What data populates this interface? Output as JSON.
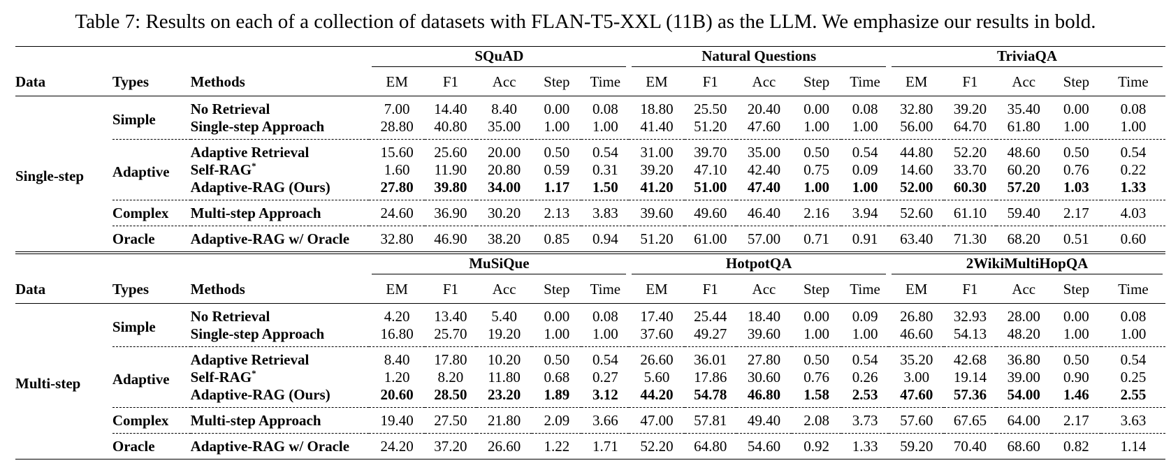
{
  "caption": "Table 7: Results on each of a collection of datasets with FLAN-T5-XXL (11B) as the LLM. We emphasize our results in bold.",
  "header": {
    "data": "Data",
    "types": "Types",
    "methods": "Methods",
    "metrics": [
      "EM",
      "F1",
      "Acc",
      "Step",
      "Time"
    ]
  },
  "blocks": [
    {
      "data_label": "Single-step",
      "datasets": [
        "SQuAD",
        "Natural Questions",
        "TriviaQA"
      ],
      "groups": [
        {
          "type": "Simple",
          "rows": [
            {
              "method": "No Retrieval",
              "values": [
                "7.00",
                "14.40",
                "8.40",
                "0.00",
                "0.08",
                "18.80",
                "25.50",
                "20.40",
                "0.00",
                "0.08",
                "32.80",
                "39.20",
                "35.40",
                "0.00",
                "0.08"
              ]
            },
            {
              "method": "Single-step Approach",
              "values": [
                "28.80",
                "40.80",
                "35.00",
                "1.00",
                "1.00",
                "41.40",
                "51.20",
                "47.60",
                "1.00",
                "1.00",
                "56.00",
                "64.70",
                "61.80",
                "1.00",
                "1.00"
              ]
            }
          ]
        },
        {
          "type": "Adaptive",
          "rows": [
            {
              "method": "Adaptive Retrieval",
              "values": [
                "15.60",
                "25.60",
                "20.00",
                "0.50",
                "0.54",
                "31.00",
                "39.70",
                "35.00",
                "0.50",
                "0.54",
                "44.80",
                "52.20",
                "48.60",
                "0.50",
                "0.54"
              ]
            },
            {
              "method": "Self-RAG",
              "sup": "*",
              "values": [
                "1.60",
                "11.90",
                "20.80",
                "0.59",
                "0.31",
                "39.20",
                "47.10",
                "42.40",
                "0.75",
                "0.09",
                "14.60",
                "33.70",
                "60.20",
                "0.76",
                "0.22"
              ]
            },
            {
              "method": "Adaptive-RAG (Ours)",
              "values": [
                "27.80",
                "39.80",
                "34.00",
                "1.17",
                "1.50",
                "41.20",
                "51.00",
                "47.40",
                "1.00",
                "1.00",
                "52.00",
                "60.30",
                "57.20",
                "1.03",
                "1.33"
              ]
            }
          ]
        },
        {
          "type": "Complex",
          "rows": [
            {
              "method": "Multi-step Approach",
              "values": [
                "24.60",
                "36.90",
                "30.20",
                "2.13",
                "3.83",
                "39.60",
                "49.60",
                "46.40",
                "2.16",
                "3.94",
                "52.60",
                "61.10",
                "59.40",
                "2.17",
                "4.03"
              ]
            }
          ]
        },
        {
          "type": "Oracle",
          "rows": [
            {
              "method": "Adaptive-RAG w/ Oracle",
              "values": [
                "32.80",
                "46.90",
                "38.20",
                "0.85",
                "0.94",
                "51.20",
                "61.00",
                "57.00",
                "0.71",
                "0.91",
                "63.40",
                "71.30",
                "68.20",
                "0.51",
                "0.60"
              ]
            }
          ]
        }
      ]
    },
    {
      "data_label": "Multi-step",
      "datasets": [
        "MuSiQue",
        "HotpotQA",
        "2WikiMultiHopQA"
      ],
      "groups": [
        {
          "type": "Simple",
          "rows": [
            {
              "method": "No Retrieval",
              "values": [
                "4.20",
                "13.40",
                "5.40",
                "0.00",
                "0.08",
                "17.40",
                "25.44",
                "18.40",
                "0.00",
                "0.09",
                "26.80",
                "32.93",
                "28.00",
                "0.00",
                "0.08"
              ]
            },
            {
              "method": "Single-step Approach",
              "values": [
                "16.80",
                "25.70",
                "19.20",
                "1.00",
                "1.00",
                "37.60",
                "49.27",
                "39.60",
                "1.00",
                "1.00",
                "46.60",
                "54.13",
                "48.20",
                "1.00",
                "1.00"
              ]
            }
          ]
        },
        {
          "type": "Adaptive",
          "rows": [
            {
              "method": "Adaptive Retrieval",
              "values": [
                "8.40",
                "17.80",
                "10.20",
                "0.50",
                "0.54",
                "26.60",
                "36.01",
                "27.80",
                "0.50",
                "0.54",
                "35.20",
                "42.68",
                "36.80",
                "0.50",
                "0.54"
              ]
            },
            {
              "method": "Self-RAG",
              "sup": "*",
              "values": [
                "1.20",
                "8.20",
                "11.80",
                "0.68",
                "0.27",
                "5.60",
                "17.86",
                "30.60",
                "0.76",
                "0.26",
                "3.00",
                "19.14",
                "39.00",
                "0.90",
                "0.25"
              ]
            },
            {
              "method": "Adaptive-RAG (Ours)",
              "values": [
                "20.60",
                "28.50",
                "23.20",
                "1.89",
                "3.12",
                "44.20",
                "54.78",
                "46.80",
                "1.58",
                "2.53",
                "47.60",
                "57.36",
                "54.00",
                "1.46",
                "2.55"
              ]
            }
          ]
        },
        {
          "type": "Complex",
          "rows": [
            {
              "method": "Multi-step Approach",
              "values": [
                "19.40",
                "27.50",
                "21.80",
                "2.09",
                "3.66",
                "47.00",
                "57.81",
                "49.40",
                "2.08",
                "3.73",
                "57.60",
                "67.65",
                "64.00",
                "2.17",
                "3.63"
              ]
            }
          ]
        },
        {
          "type": "Oracle",
          "rows": [
            {
              "method": "Adaptive-RAG w/ Oracle",
              "values": [
                "24.20",
                "37.20",
                "26.60",
                "1.22",
                "1.71",
                "52.20",
                "64.80",
                "54.60",
                "0.92",
                "1.33",
                "59.20",
                "70.40",
                "68.60",
                "0.82",
                "1.14"
              ]
            }
          ]
        }
      ]
    }
  ]
}
